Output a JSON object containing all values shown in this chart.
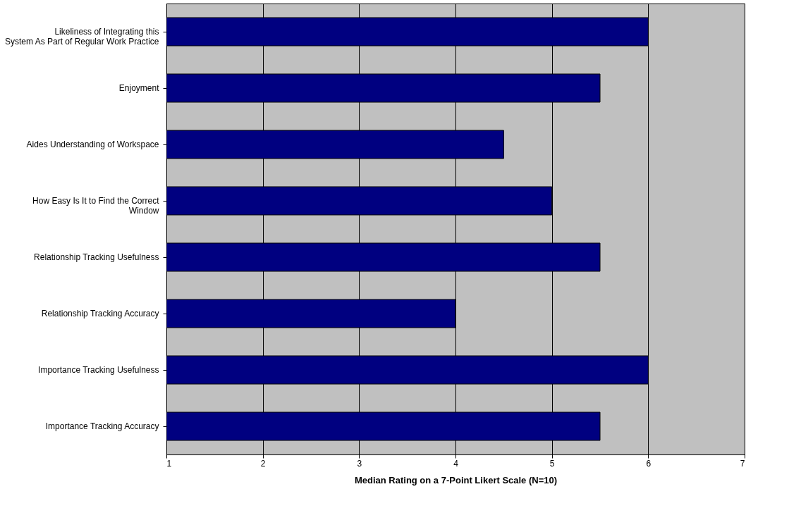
{
  "chart_data": {
    "type": "bar",
    "orientation": "horizontal",
    "xlabel": "Median Rating on a 7-Point Likert Scale (N=10)",
    "categories": [
      "Likeliness of Integrating this System As Part of Regular Work Practice",
      "Enjoyment",
      "Aides Understanding of Workspace",
      "How Easy Is It to Find the Correct Window",
      "Relationship Tracking Usefulness",
      "Relationship Tracking Accuracy",
      "Importance Tracking Usefulness",
      "Importance Tracking Accuracy"
    ],
    "values": [
      6,
      5.5,
      4.5,
      5,
      5.5,
      4,
      6,
      5.5
    ],
    "color": "#000080",
    "xlim": [
      1,
      7
    ],
    "xticks": [
      1,
      2,
      3,
      4,
      5,
      6,
      7
    ],
    "grid": "x"
  }
}
